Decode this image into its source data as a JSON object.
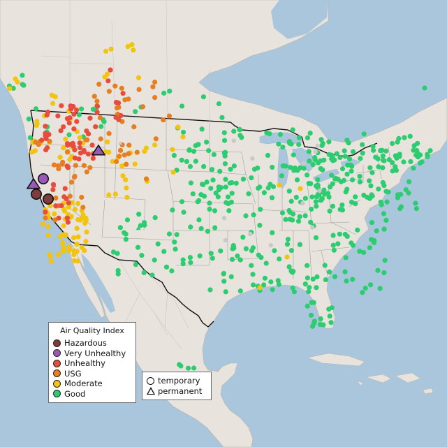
{
  "legend": {
    "title": "Air Quality Index",
    "categories": [
      {
        "key": "hazardous",
        "label": "Hazardous",
        "color": "#7e3c3c"
      },
      {
        "key": "very_unhealthy",
        "label": "Very Unhealthy",
        "color": "#9b59b6"
      },
      {
        "key": "unhealthy",
        "label": "Unhealthy",
        "color": "#e74c3c"
      },
      {
        "key": "usg",
        "label": "USG",
        "color": "#e67e22"
      },
      {
        "key": "moderate",
        "label": "Moderate",
        "color": "#f1c40f"
      },
      {
        "key": "good",
        "label": "Good",
        "color": "#2ecc71"
      }
    ]
  },
  "monitor_types": {
    "temporary": "temporary",
    "permanent": "permanent"
  },
  "colors": {
    "water": "#a9c6dd",
    "land": "#e8e4dd",
    "no_data": "#c9c9c9"
  }
}
